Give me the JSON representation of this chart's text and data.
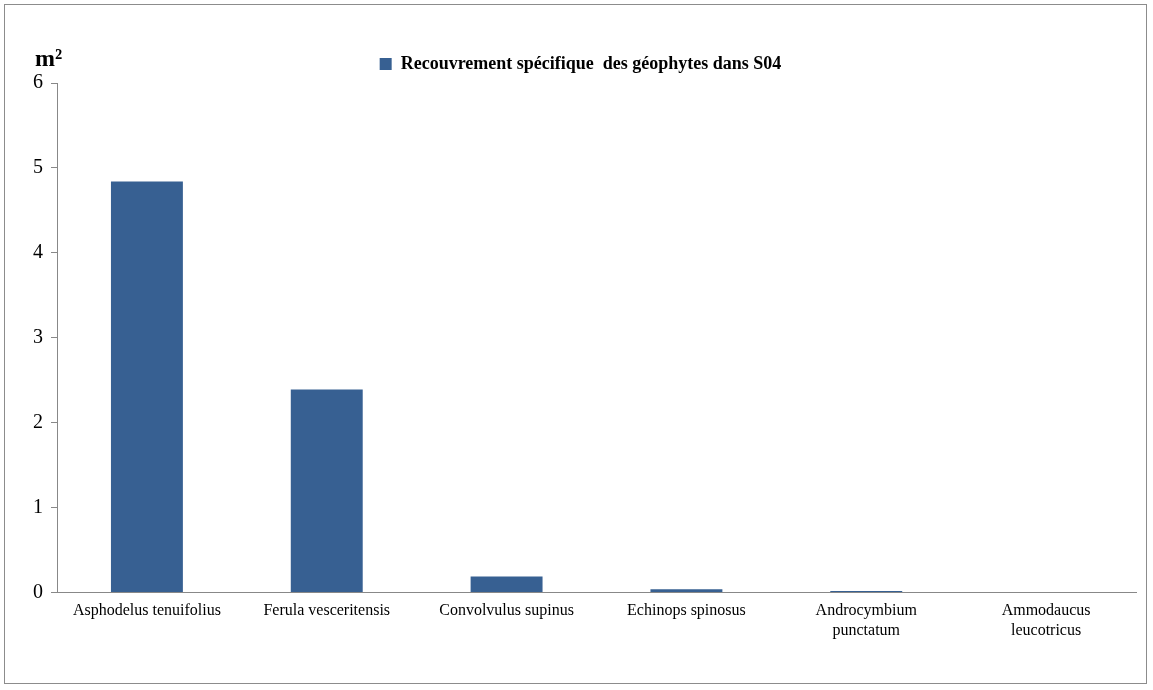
{
  "chart_data": {
    "type": "bar",
    "ylabel": "m²",
    "categories": [
      "Asphodelus tenuifolius",
      "Ferula vesceritensis",
      "Convolvulus supinus",
      "Echinops spinosus",
      "Androcymbium punctatum",
      "Ammodaucus leucotricus"
    ],
    "series": [
      {
        "name": "Recouvrement spécifique  des géophytes dans S04",
        "color": "#376092",
        "values": [
          4.84,
          2.39,
          0.19,
          0.04,
          0.02,
          0
        ]
      }
    ],
    "ylim": [
      0,
      6
    ],
    "yticks": [
      0,
      1,
      2,
      3,
      4,
      5,
      6
    ],
    "grid": false,
    "legend": "top"
  }
}
